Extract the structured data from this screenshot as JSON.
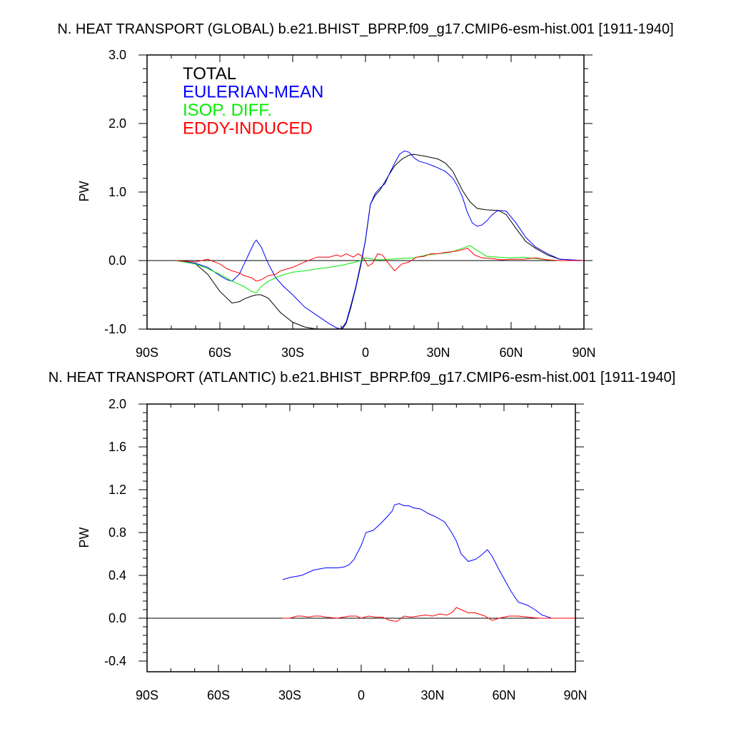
{
  "chart_data": [
    {
      "type": "line",
      "title": "N. HEAT TRANSPORT (GLOBAL) b.e21.BHIST_BPRP.f09_g17.CMIP6-esm-hist.001 [1911-1940]",
      "xlabel": "",
      "ylabel": "PW",
      "xlim": [
        -90,
        90
      ],
      "ylim": [
        -1.0,
        3.0
      ],
      "x_ticks": [
        -90,
        -60,
        -30,
        0,
        30,
        60,
        90
      ],
      "x_tick_labels": [
        "90S",
        "60S",
        "30S",
        "0",
        "30N",
        "60N",
        "90N"
      ],
      "y_ticks": [
        -1.0,
        0.0,
        1.0,
        2.0,
        3.0
      ],
      "y_tick_labels": [
        "-1.0",
        "0.0",
        "1.0",
        "2.0",
        "3.0"
      ],
      "legend_position": "top-left",
      "legend": [
        {
          "label": "TOTAL",
          "color": "#000000"
        },
        {
          "label": "EULERIAN-MEAN",
          "color": "#0000ff"
        },
        {
          "label": "ISOP. DIFF.",
          "color": "#00ee00"
        },
        {
          "label": "EDDY-INDUCED",
          "color": "#ff0000"
        }
      ],
      "reference_line": 0,
      "series": [
        {
          "name": "TOTAL",
          "color": "#000000",
          "x": [
            -78,
            -70,
            -65,
            -60,
            -55,
            -52,
            -50,
            -47,
            -45,
            -43,
            -40,
            -35,
            -30,
            -25,
            -20,
            -15,
            -10,
            -8,
            -6,
            -4,
            -2,
            0,
            2,
            4,
            6,
            8,
            10,
            12,
            15,
            18,
            20,
            25,
            30,
            33,
            36,
            40,
            43,
            46,
            50,
            55,
            58,
            62,
            66,
            70,
            75,
            80,
            90
          ],
          "y": [
            0.0,
            -0.05,
            -0.2,
            -0.45,
            -0.62,
            -0.6,
            -0.56,
            -0.52,
            -0.5,
            -0.5,
            -0.55,
            -0.76,
            -0.9,
            -0.97,
            -1.0,
            -1.02,
            -1.02,
            -0.92,
            -0.68,
            -0.4,
            -0.08,
            0.3,
            0.82,
            0.95,
            1.03,
            1.15,
            1.27,
            1.38,
            1.48,
            1.54,
            1.55,
            1.52,
            1.48,
            1.42,
            1.3,
            1.02,
            0.86,
            0.76,
            0.74,
            0.73,
            0.67,
            0.47,
            0.28,
            0.18,
            0.08,
            0.02,
            0.0
          ]
        },
        {
          "name": "EULERIAN-MEAN",
          "color": "#0000ff",
          "x": [
            -78,
            -70,
            -65,
            -60,
            -57,
            -55,
            -52,
            -50,
            -48,
            -46,
            -45,
            -43,
            -40,
            -37,
            -34,
            -30,
            -25,
            -20,
            -15,
            -12,
            -10,
            -8,
            -6,
            -4,
            -2,
            0,
            2,
            4,
            6,
            8,
            10,
            12,
            14,
            16,
            18,
            20,
            22,
            25,
            28,
            30,
            33,
            36,
            38,
            40,
            42,
            44,
            46,
            48,
            50,
            52,
            54,
            56,
            58,
            62,
            66,
            70,
            75,
            80,
            90
          ],
          "y": [
            0.0,
            -0.04,
            -0.1,
            -0.22,
            -0.28,
            -0.3,
            -0.2,
            -0.05,
            0.1,
            0.25,
            0.3,
            0.2,
            -0.05,
            -0.25,
            -0.37,
            -0.5,
            -0.68,
            -0.8,
            -0.92,
            -0.98,
            -1.0,
            -0.9,
            -0.65,
            -0.38,
            -0.05,
            0.3,
            0.82,
            0.98,
            1.06,
            1.12,
            1.28,
            1.42,
            1.55,
            1.6,
            1.58,
            1.5,
            1.45,
            1.42,
            1.38,
            1.35,
            1.3,
            1.2,
            1.08,
            0.92,
            0.7,
            0.55,
            0.5,
            0.52,
            0.58,
            0.66,
            0.72,
            0.73,
            0.72,
            0.55,
            0.34,
            0.2,
            0.1,
            0.02,
            0.0
          ]
        },
        {
          "name": "ISOP. DIFF.",
          "color": "#00ee00",
          "x": [
            -78,
            -70,
            -65,
            -60,
            -55,
            -50,
            -47,
            -45,
            -43,
            -40,
            -35,
            -30,
            -25,
            -20,
            -15,
            -10,
            -5,
            -2,
            0,
            3,
            6,
            10,
            15,
            20,
            25,
            30,
            35,
            40,
            43,
            45,
            50,
            55,
            60,
            65,
            70,
            75,
            80,
            90
          ],
          "y": [
            0.0,
            -0.05,
            -0.12,
            -0.2,
            -0.3,
            -0.38,
            -0.45,
            -0.47,
            -0.38,
            -0.3,
            -0.22,
            -0.17,
            -0.15,
            -0.12,
            -0.1,
            -0.07,
            -0.03,
            0.0,
            0.04,
            0.02,
            0.01,
            0.02,
            0.03,
            0.04,
            0.08,
            0.1,
            0.12,
            0.18,
            0.22,
            0.17,
            0.06,
            0.05,
            0.04,
            0.05,
            0.03,
            0.01,
            0.0,
            0.0
          ]
        },
        {
          "name": "EDDY-INDUCED",
          "color": "#ff0000",
          "x": [
            -78,
            -70,
            -65,
            -60,
            -57,
            -55,
            -52,
            -50,
            -47,
            -45,
            -43,
            -40,
            -37,
            -35,
            -32,
            -30,
            -25,
            -20,
            -15,
            -12,
            -10,
            -8,
            -5,
            -3,
            -1,
            1,
            3,
            5,
            7,
            9,
            12,
            15,
            18,
            21,
            24,
            27,
            30,
            33,
            36,
            39,
            42,
            45,
            48,
            52,
            56,
            60,
            65,
            70,
            75,
            80,
            90
          ],
          "y": [
            0.0,
            -0.02,
            0.02,
            -0.05,
            -0.12,
            -0.15,
            -0.18,
            -0.22,
            -0.25,
            -0.3,
            -0.28,
            -0.22,
            -0.2,
            -0.15,
            -0.12,
            -0.1,
            -0.02,
            0.05,
            0.05,
            0.08,
            0.06,
            0.1,
            0.05,
            0.1,
            0.05,
            -0.08,
            -0.04,
            0.1,
            0.08,
            -0.02,
            -0.15,
            -0.05,
            -0.02,
            0.05,
            0.06,
            0.1,
            0.1,
            0.12,
            0.13,
            0.15,
            0.18,
            0.08,
            0.04,
            0.03,
            0.01,
            0.02,
            0.02,
            0.04,
            0.01,
            0.0,
            0.0
          ]
        }
      ]
    },
    {
      "type": "line",
      "title": "N. HEAT TRANSPORT (ATLANTIC) b.e21.BHIST_BPRP.f09_g17.CMIP6-esm-hist.001 [1911-1940]",
      "xlabel": "",
      "ylabel": "PW",
      "xlim": [
        -90,
        90
      ],
      "ylim": [
        -0.5,
        2.0
      ],
      "x_ticks": [
        -90,
        -60,
        -30,
        0,
        30,
        60,
        90
      ],
      "x_tick_labels": [
        "90S",
        "60S",
        "30S",
        "0",
        "30N",
        "60N",
        "90N"
      ],
      "y_ticks": [
        -0.4,
        0.0,
        0.4,
        0.8,
        1.2,
        1.6,
        2.0
      ],
      "y_tick_labels": [
        "-0.4",
        "0.0",
        "0.4",
        "0.8",
        "1.2",
        "1.6",
        "2.0"
      ],
      "reference_line": 0,
      "series": [
        {
          "color": "#0000ff",
          "x": [
            -33,
            -30,
            -25,
            -20,
            -15,
            -10,
            -7,
            -5,
            -3,
            0,
            2,
            5,
            8,
            11,
            13,
            14,
            16,
            18,
            20,
            22,
            25,
            28,
            31,
            35,
            38,
            40,
            42,
            45,
            48,
            50,
            52,
            53,
            55,
            58,
            61,
            63,
            66,
            70,
            73,
            76,
            80,
            85,
            90
          ],
          "y": [
            0.36,
            0.38,
            0.4,
            0.45,
            0.47,
            0.47,
            0.48,
            0.5,
            0.55,
            0.68,
            0.8,
            0.82,
            0.88,
            0.95,
            1.0,
            1.06,
            1.07,
            1.05,
            1.05,
            1.03,
            1.02,
            0.98,
            0.95,
            0.9,
            0.8,
            0.72,
            0.6,
            0.53,
            0.55,
            0.58,
            0.62,
            0.64,
            0.58,
            0.45,
            0.33,
            0.25,
            0.15,
            0.12,
            0.08,
            0.03,
            0.0,
            0.0,
            0.0
          ]
        },
        {
          "color": "#ff0000",
          "x": [
            -33,
            -30,
            -27,
            -25,
            -22,
            -20,
            -17,
            -15,
            -10,
            -5,
            -2,
            0,
            3,
            6,
            9,
            12,
            15,
            18,
            21,
            24,
            27,
            30,
            33,
            36,
            38,
            40,
            42,
            45,
            48,
            52,
            55,
            58,
            62,
            66,
            70,
            75,
            80,
            90
          ],
          "y": [
            0.0,
            0.0,
            0.02,
            0.02,
            0.01,
            0.02,
            0.02,
            0.01,
            0.0,
            0.02,
            0.02,
            0.0,
            0.02,
            0.01,
            0.01,
            -0.02,
            -0.03,
            0.02,
            0.01,
            0.02,
            0.03,
            0.02,
            0.04,
            0.03,
            0.05,
            0.1,
            0.08,
            0.05,
            0.05,
            0.02,
            -0.02,
            0.0,
            0.02,
            0.02,
            0.01,
            0.0,
            0.0,
            0.0
          ]
        }
      ]
    }
  ]
}
